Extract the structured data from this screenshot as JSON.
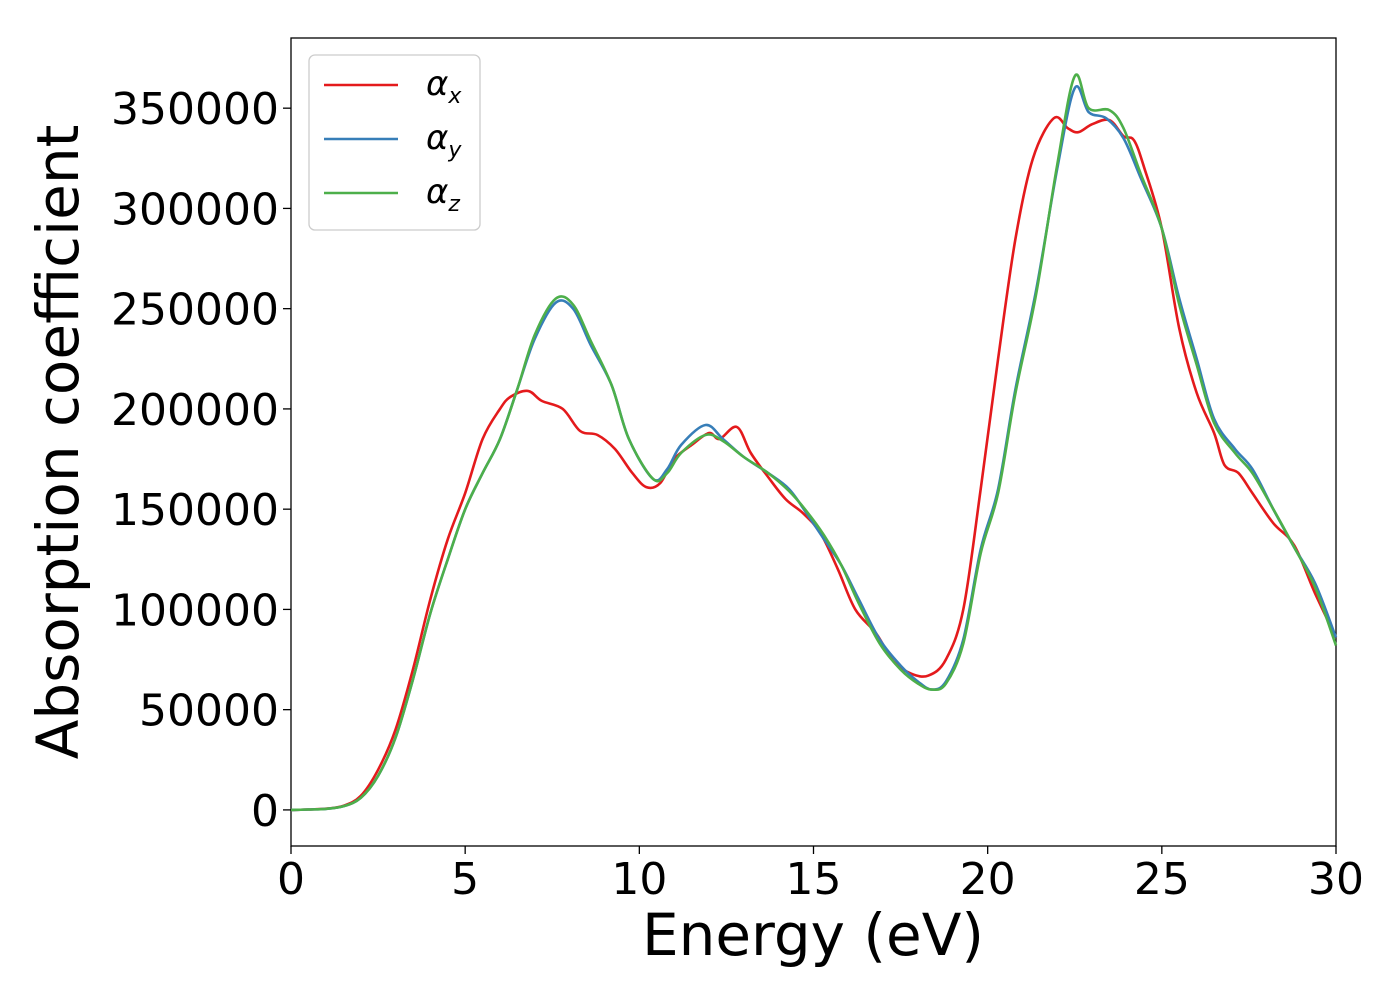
{
  "chart_data": {
    "type": "line",
    "title": "",
    "xlabel": "Energy (eV)",
    "ylabel": "Absorption coefficient",
    "xlim": [
      0,
      30
    ],
    "ylim": [
      -18000,
      385000
    ],
    "xticks": [
      0,
      5,
      10,
      15,
      20,
      25,
      30
    ],
    "yticks": [
      0,
      50000,
      100000,
      150000,
      200000,
      250000,
      300000,
      350000
    ],
    "grid": false,
    "legend_position": "top-left",
    "series": [
      {
        "name": "α",
        "subscript": "x",
        "color": "#e41a1c",
        "points": [
          [
            0,
            0
          ],
          [
            0.5,
            200
          ],
          [
            1,
            600
          ],
          [
            1.5,
            2000
          ],
          [
            2,
            7000
          ],
          [
            2.5,
            20000
          ],
          [
            3,
            40000
          ],
          [
            3.5,
            70000
          ],
          [
            4,
            105000
          ],
          [
            4.5,
            135000
          ],
          [
            5,
            158000
          ],
          [
            5.5,
            185000
          ],
          [
            6,
            200000
          ],
          [
            6.3,
            206000
          ],
          [
            6.8,
            209000
          ],
          [
            7.2,
            204000
          ],
          [
            7.8,
            200000
          ],
          [
            8.3,
            189000
          ],
          [
            8.8,
            187000
          ],
          [
            9.3,
            180000
          ],
          [
            9.8,
            168000
          ],
          [
            10.2,
            161000
          ],
          [
            10.6,
            163000
          ],
          [
            11,
            175000
          ],
          [
            11.5,
            182000
          ],
          [
            12,
            188000
          ],
          [
            12.3,
            185000
          ],
          [
            12.8,
            191000
          ],
          [
            13.2,
            178000
          ],
          [
            13.7,
            166000
          ],
          [
            14.2,
            155000
          ],
          [
            14.7,
            148000
          ],
          [
            15.2,
            138000
          ],
          [
            15.7,
            120000
          ],
          [
            16.2,
            100000
          ],
          [
            16.8,
            88000
          ],
          [
            17.3,
            74000
          ],
          [
            17.8,
            68000
          ],
          [
            18.3,
            67000
          ],
          [
            18.8,
            75000
          ],
          [
            19.3,
            100000
          ],
          [
            19.8,
            160000
          ],
          [
            20.3,
            225000
          ],
          [
            20.8,
            285000
          ],
          [
            21.3,
            325000
          ],
          [
            21.9,
            345000
          ],
          [
            22.3,
            340000
          ],
          [
            22.6,
            338000
          ],
          [
            23,
            342000
          ],
          [
            23.5,
            344000
          ],
          [
            23.9,
            336000
          ],
          [
            24.2,
            334000
          ],
          [
            24.5,
            320000
          ],
          [
            25,
            290000
          ],
          [
            25.5,
            240000
          ],
          [
            26,
            208000
          ],
          [
            26.5,
            188000
          ],
          [
            26.8,
            172000
          ],
          [
            27.2,
            168000
          ],
          [
            27.6,
            158000
          ],
          [
            28.2,
            143000
          ],
          [
            28.8,
            132000
          ],
          [
            29.4,
            108000
          ],
          [
            30,
            86000
          ]
        ]
      },
      {
        "name": "α",
        "subscript": "y",
        "color": "#377eb8",
        "points": [
          [
            0,
            0
          ],
          [
            0.5,
            200
          ],
          [
            1,
            500
          ],
          [
            1.5,
            1800
          ],
          [
            2,
            6000
          ],
          [
            2.5,
            17000
          ],
          [
            3,
            36000
          ],
          [
            3.5,
            65000
          ],
          [
            4,
            98000
          ],
          [
            4.5,
            125000
          ],
          [
            5,
            150000
          ],
          [
            5.5,
            168000
          ],
          [
            6,
            185000
          ],
          [
            6.5,
            210000
          ],
          [
            7,
            235000
          ],
          [
            7.6,
            253000
          ],
          [
            8.1,
            250000
          ],
          [
            8.6,
            232000
          ],
          [
            9.2,
            212000
          ],
          [
            9.7,
            185000
          ],
          [
            10.4,
            165000
          ],
          [
            10.8,
            170000
          ],
          [
            11.2,
            182000
          ],
          [
            11.9,
            192000
          ],
          [
            12.4,
            185000
          ],
          [
            13,
            176000
          ],
          [
            13.7,
            168000
          ],
          [
            14.3,
            160000
          ],
          [
            14.8,
            148000
          ],
          [
            15.3,
            135000
          ],
          [
            15.8,
            122000
          ],
          [
            16.3,
            105000
          ],
          [
            16.9,
            85000
          ],
          [
            17.5,
            72000
          ],
          [
            18,
            64000
          ],
          [
            18.4,
            60000
          ],
          [
            18.8,
            64000
          ],
          [
            19.3,
            85000
          ],
          [
            19.8,
            130000
          ],
          [
            20.3,
            160000
          ],
          [
            20.8,
            210000
          ],
          [
            21.4,
            260000
          ],
          [
            22,
            320000
          ],
          [
            22.5,
            360000
          ],
          [
            22.9,
            348000
          ],
          [
            23.4,
            345000
          ],
          [
            23.9,
            335000
          ],
          [
            24.4,
            315000
          ],
          [
            25,
            290000
          ],
          [
            25.5,
            255000
          ],
          [
            26,
            225000
          ],
          [
            26.5,
            195000
          ],
          [
            27.1,
            180000
          ],
          [
            27.6,
            170000
          ],
          [
            28.2,
            150000
          ],
          [
            28.8,
            131000
          ],
          [
            29.4,
            113000
          ],
          [
            30,
            86000
          ]
        ]
      },
      {
        "name": "α",
        "subscript": "z",
        "color": "#4daf4a",
        "points": [
          [
            0,
            0
          ],
          [
            0.5,
            200
          ],
          [
            1,
            500
          ],
          [
            1.5,
            1800
          ],
          [
            2,
            6000
          ],
          [
            2.5,
            17000
          ],
          [
            3,
            36000
          ],
          [
            3.5,
            65000
          ],
          [
            4,
            98000
          ],
          [
            4.5,
            125000
          ],
          [
            5,
            150000
          ],
          [
            5.5,
            168000
          ],
          [
            6,
            185000
          ],
          [
            6.5,
            210000
          ],
          [
            7,
            237000
          ],
          [
            7.6,
            255000
          ],
          [
            8.1,
            252000
          ],
          [
            8.6,
            234000
          ],
          [
            9.2,
            212000
          ],
          [
            9.7,
            185000
          ],
          [
            10.4,
            165000
          ],
          [
            10.8,
            168000
          ],
          [
            11.2,
            178000
          ],
          [
            11.9,
            187000
          ],
          [
            12.4,
            184000
          ],
          [
            13,
            176000
          ],
          [
            13.7,
            168000
          ],
          [
            14.3,
            159000
          ],
          [
            14.8,
            149000
          ],
          [
            15.3,
            137000
          ],
          [
            15.8,
            122000
          ],
          [
            16.3,
            103000
          ],
          [
            16.9,
            83000
          ],
          [
            17.5,
            70000
          ],
          [
            18,
            63000
          ],
          [
            18.4,
            60000
          ],
          [
            18.8,
            63000
          ],
          [
            19.3,
            83000
          ],
          [
            19.8,
            128000
          ],
          [
            20.3,
            158000
          ],
          [
            20.8,
            208000
          ],
          [
            21.4,
            258000
          ],
          [
            22,
            322000
          ],
          [
            22.5,
            366000
          ],
          [
            22.9,
            350000
          ],
          [
            23.5,
            349000
          ],
          [
            23.9,
            340000
          ],
          [
            24.4,
            317000
          ],
          [
            25,
            290000
          ],
          [
            25.5,
            252000
          ],
          [
            26,
            222000
          ],
          [
            26.5,
            193000
          ],
          [
            27.1,
            178000
          ],
          [
            27.6,
            168000
          ],
          [
            28.2,
            150000
          ],
          [
            28.8,
            131000
          ],
          [
            29.4,
            111000
          ],
          [
            30,
            82000
          ]
        ]
      }
    ]
  }
}
